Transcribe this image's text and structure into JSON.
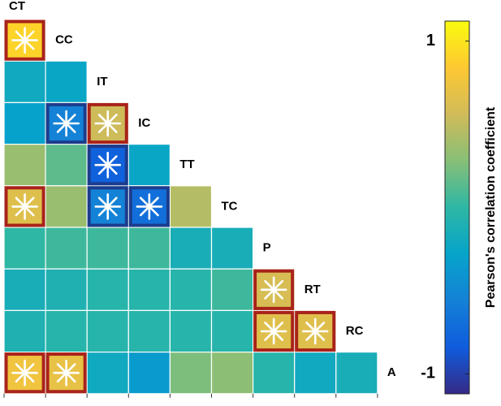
{
  "chart_data": {
    "type": "heatmap",
    "variables": [
      "CT",
      "CC",
      "IT",
      "IC",
      "TT",
      "TC",
      "P",
      "RT",
      "RC",
      "A"
    ],
    "rows": [
      {
        "values": [
          0.9
        ],
        "significant": [
          true
        ]
      },
      {
        "values": [
          -0.2,
          -0.25
        ],
        "significant": [
          false,
          false
        ]
      },
      {
        "values": [
          -0.3,
          -0.55,
          0.55
        ],
        "significant": [
          false,
          true,
          true
        ]
      },
      {
        "values": [
          0.35,
          0.15,
          -0.8,
          -0.25
        ],
        "significant": [
          false,
          false,
          true,
          false
        ]
      },
      {
        "values": [
          0.65,
          0.35,
          -0.55,
          -0.7,
          0.45
        ],
        "significant": [
          true,
          false,
          true,
          true,
          false
        ]
      },
      {
        "values": [
          0.0,
          0.05,
          0.05,
          0.05,
          -0.15,
          -0.15
        ],
        "significant": [
          false,
          false,
          false,
          false,
          false,
          false
        ]
      },
      {
        "values": [
          -0.15,
          -0.1,
          -0.05,
          -0.05,
          -0.05,
          0.05,
          0.6
        ],
        "significant": [
          false,
          false,
          false,
          false,
          false,
          false,
          true
        ]
      },
      {
        "values": [
          -0.1,
          -0.05,
          -0.05,
          -0.05,
          -0.05,
          -0.05,
          0.65,
          0.65
        ],
        "significant": [
          false,
          false,
          false,
          false,
          false,
          false,
          true,
          true
        ]
      },
      {
        "values": [
          0.75,
          0.7,
          -0.2,
          -0.35,
          0.25,
          0.3,
          -0.05,
          -0.2,
          -0.15
        ],
        "significant": [
          true,
          true,
          false,
          false,
          false,
          false,
          false,
          false,
          false
        ]
      }
    ],
    "colormap": [
      "#352a87",
      "#0f5cdd",
      "#1481d6",
      "#06a4ca",
      "#2eb7a4",
      "#87bf77",
      "#d1bb59",
      "#fec832",
      "#f9fb0e"
    ],
    "clim": [
      -1.12,
      1.12
    ],
    "colorbar_ticks": [
      -1,
      1
    ],
    "colorbar_label": "Pearson's correlation coefficient",
    "significant_positive_border": "#a8231a",
    "significant_negative_border": "#1c3c8c"
  }
}
